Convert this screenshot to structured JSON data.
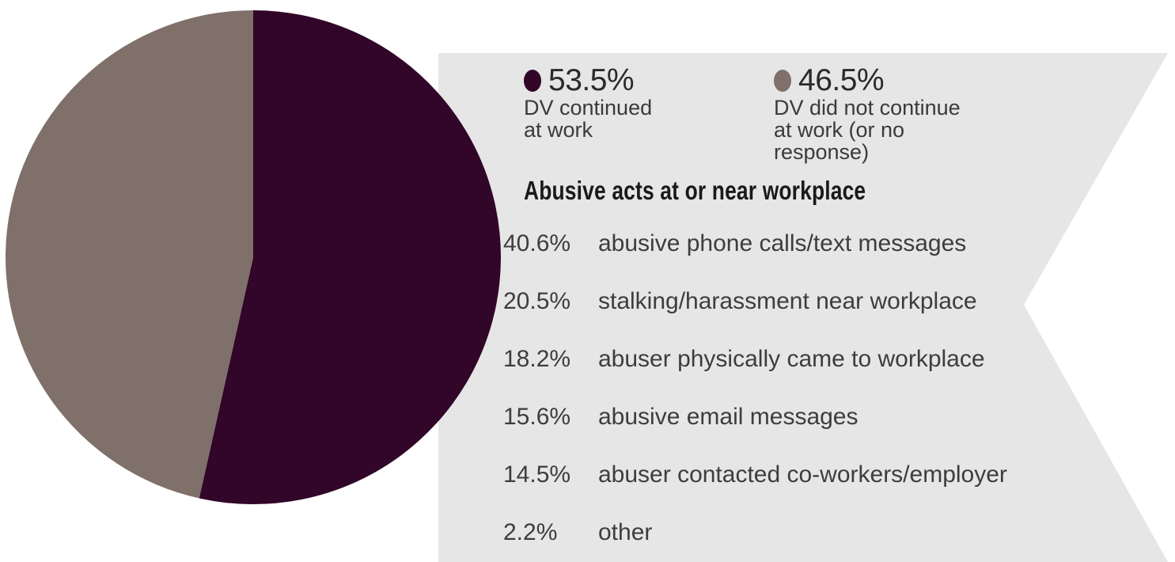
{
  "colors": {
    "continued": "#320628",
    "not_continued": "#7f7069",
    "panel": "#e6e6e6"
  },
  "chart_data": [
    {
      "type": "pie",
      "slices": [
        {
          "label": "DV continued at work",
          "value": 53.5,
          "display": "53.5%",
          "color": "#320628"
        },
        {
          "label": "DV did not continue at work (or no response)",
          "value": 46.5,
          "display": "46.5%",
          "color": "#7f7069"
        }
      ]
    },
    {
      "type": "table",
      "title": "Abusive acts at or near workplace",
      "rows": [
        {
          "value": 40.6,
          "display": "40.6%",
          "label": "abusive phone calls/text messages"
        },
        {
          "value": 20.5,
          "display": "20.5%",
          "label": "stalking/harassment near workplace"
        },
        {
          "value": 18.2,
          "display": "18.2%",
          "label": "abuser physically came to workplace"
        },
        {
          "value": 15.6,
          "display": "15.6%",
          "label": "abusive email messages"
        },
        {
          "value": 14.5,
          "display": "14.5%",
          "label": "abuser contacted co-workers/employer"
        },
        {
          "value": 2.2,
          "display": "2.2%",
          "label": "other"
        }
      ]
    }
  ],
  "legend": [
    {
      "value": "53.5%",
      "line1": "DV continued",
      "line2": "at work",
      "line3": "",
      "color": "#320628"
    },
    {
      "value": "46.5%",
      "line1": "DV did not continue",
      "line2": "at work (or no",
      "line3": "response)",
      "color": "#7f7069"
    }
  ]
}
